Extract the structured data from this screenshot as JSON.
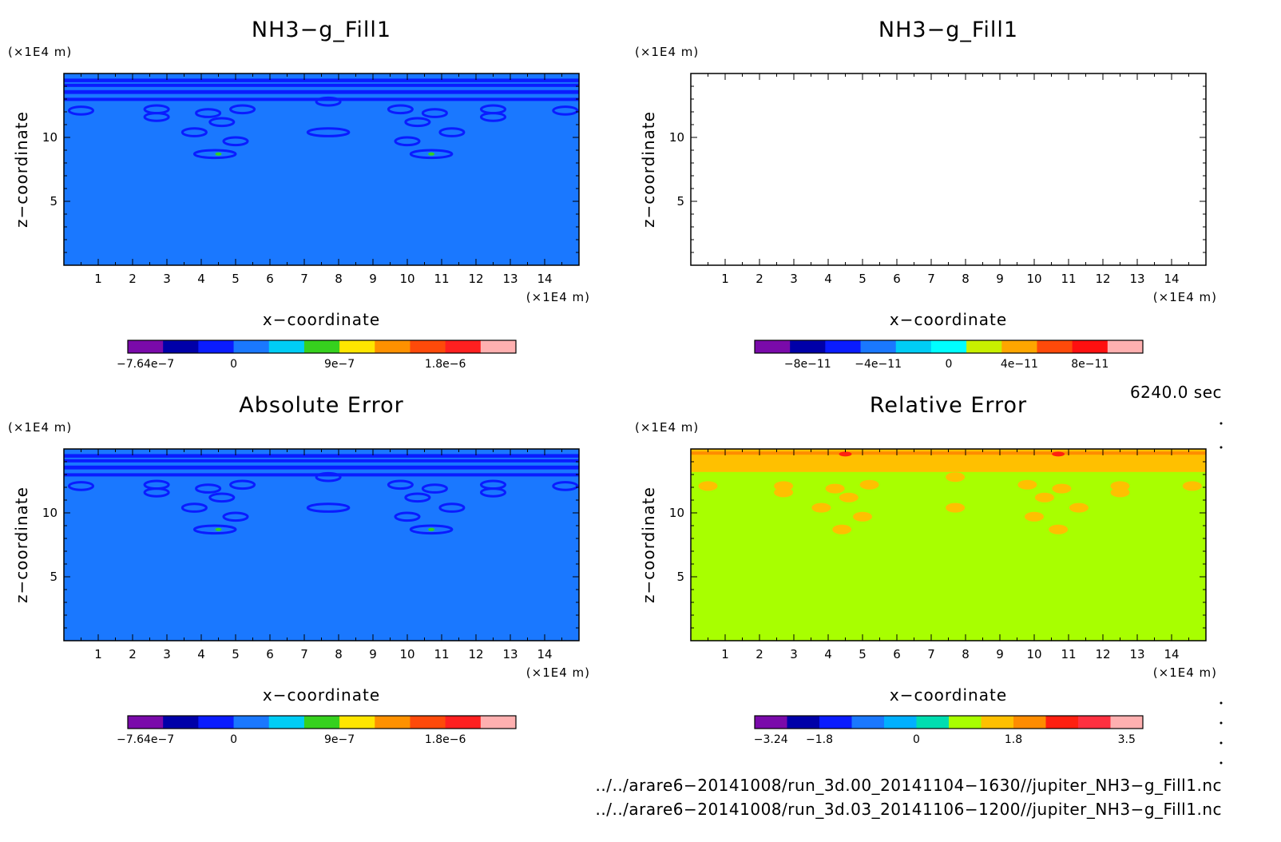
{
  "chart_data": [
    {
      "type": "heatmap",
      "title": "NH3−g_Fill1",
      "xlabel": "x−coordinate",
      "ylabel": "z−coordinate",
      "x_unit": "(×1E4 m)",
      "y_unit": "(×1E4 m)",
      "xlim": [
        0,
        15
      ],
      "ylim": [
        0,
        15
      ],
      "x_ticks": [
        "1",
        "2",
        "3",
        "4",
        "5",
        "6",
        "7",
        "8",
        "9",
        "10",
        "11",
        "12",
        "13",
        "14"
      ],
      "y_ticks": [
        "5",
        "10"
      ],
      "background_color": "#1a78ff",
      "colorbar": {
        "colors": [
          "#7a0aaa",
          "#0000a8",
          "#0a1cff",
          "#1a78ff",
          "#00cdf5",
          "#36d11e",
          "#ffe600",
          "#ff9100",
          "#ff4a0a",
          "#ff2020",
          "#ffb0b0"
        ],
        "tick_labels": [
          "−7.64e−7",
          "0",
          "9e−7",
          "1.8e−6"
        ]
      }
    },
    {
      "type": "heatmap",
      "title": "NH3−g_Fill1",
      "xlabel": "x−coordinate",
      "ylabel": "z−coordinate",
      "x_unit": "(×1E4 m)",
      "y_unit": "(×1E4 m)",
      "xlim": [
        0,
        15
      ],
      "ylim": [
        0,
        15
      ],
      "x_ticks": [
        "1",
        "2",
        "3",
        "4",
        "5",
        "6",
        "7",
        "8",
        "9",
        "10",
        "11",
        "12",
        "13",
        "14"
      ],
      "y_ticks": [
        "5",
        "10"
      ],
      "background_color": "#ffffff",
      "colorbar": {
        "colors": [
          "#7a0aaa",
          "#0000a8",
          "#0a1cff",
          "#1a78ff",
          "#00cdf5",
          "#00ffff",
          "#c8f000",
          "#ffa600",
          "#ff4a0a",
          "#ff1010",
          "#ffb0b0"
        ],
        "tick_labels": [
          "−8e−11",
          "−4e−11",
          "0",
          "4e−11",
          "8e−11"
        ]
      }
    },
    {
      "type": "heatmap",
      "title": "Absolute Error",
      "xlabel": "x−coordinate",
      "ylabel": "z−coordinate",
      "x_unit": "(×1E4 m)",
      "y_unit": "(×1E4 m)",
      "xlim": [
        0,
        15
      ],
      "ylim": [
        0,
        15
      ],
      "x_ticks": [
        "1",
        "2",
        "3",
        "4",
        "5",
        "6",
        "7",
        "8",
        "9",
        "10",
        "11",
        "12",
        "13",
        "14"
      ],
      "y_ticks": [
        "5",
        "10"
      ],
      "background_color": "#1a78ff",
      "colorbar": {
        "colors": [
          "#7a0aaa",
          "#0000a8",
          "#0a1cff",
          "#1a78ff",
          "#00cdf5",
          "#36d11e",
          "#ffe600",
          "#ff9100",
          "#ff4a0a",
          "#ff2020",
          "#ffb0b0"
        ],
        "tick_labels": [
          "−7.64e−7",
          "0",
          "9e−7",
          "1.8e−6"
        ]
      }
    },
    {
      "type": "heatmap",
      "title": "Relative Error",
      "xlabel": "x−coordinate",
      "ylabel": "z−coordinate",
      "x_unit": "(×1E4 m)",
      "y_unit": "(×1E4 m)",
      "xlim": [
        0,
        15
      ],
      "ylim": [
        0,
        15
      ],
      "x_ticks": [
        "1",
        "2",
        "3",
        "4",
        "5",
        "6",
        "7",
        "8",
        "9",
        "10",
        "11",
        "12",
        "13",
        "14"
      ],
      "y_ticks": [
        "5",
        "10"
      ],
      "background_color": "#a8ff00",
      "colorbar": {
        "colors": [
          "#7a0aaa",
          "#0000a8",
          "#0a1cff",
          "#1a78ff",
          "#00b0ff",
          "#00ddb0",
          "#a8ff00",
          "#ffc000",
          "#ff8c00",
          "#ff2010",
          "#ff3040",
          "#ffb0b0"
        ],
        "tick_labels": [
          "−3.24",
          "−1.8",
          "0",
          "1.8",
          "3.5"
        ]
      }
    }
  ],
  "time_label": "6240.0 sec",
  "file_paths": [
    "../../arare6−20141008/run_3d.00_20141104−1630//jupiter_NH3−g_Fill1.nc",
    "../../arare6−20141008/run_3d.03_20141106−1200//jupiter_NH3−g_Fill1.nc"
  ]
}
